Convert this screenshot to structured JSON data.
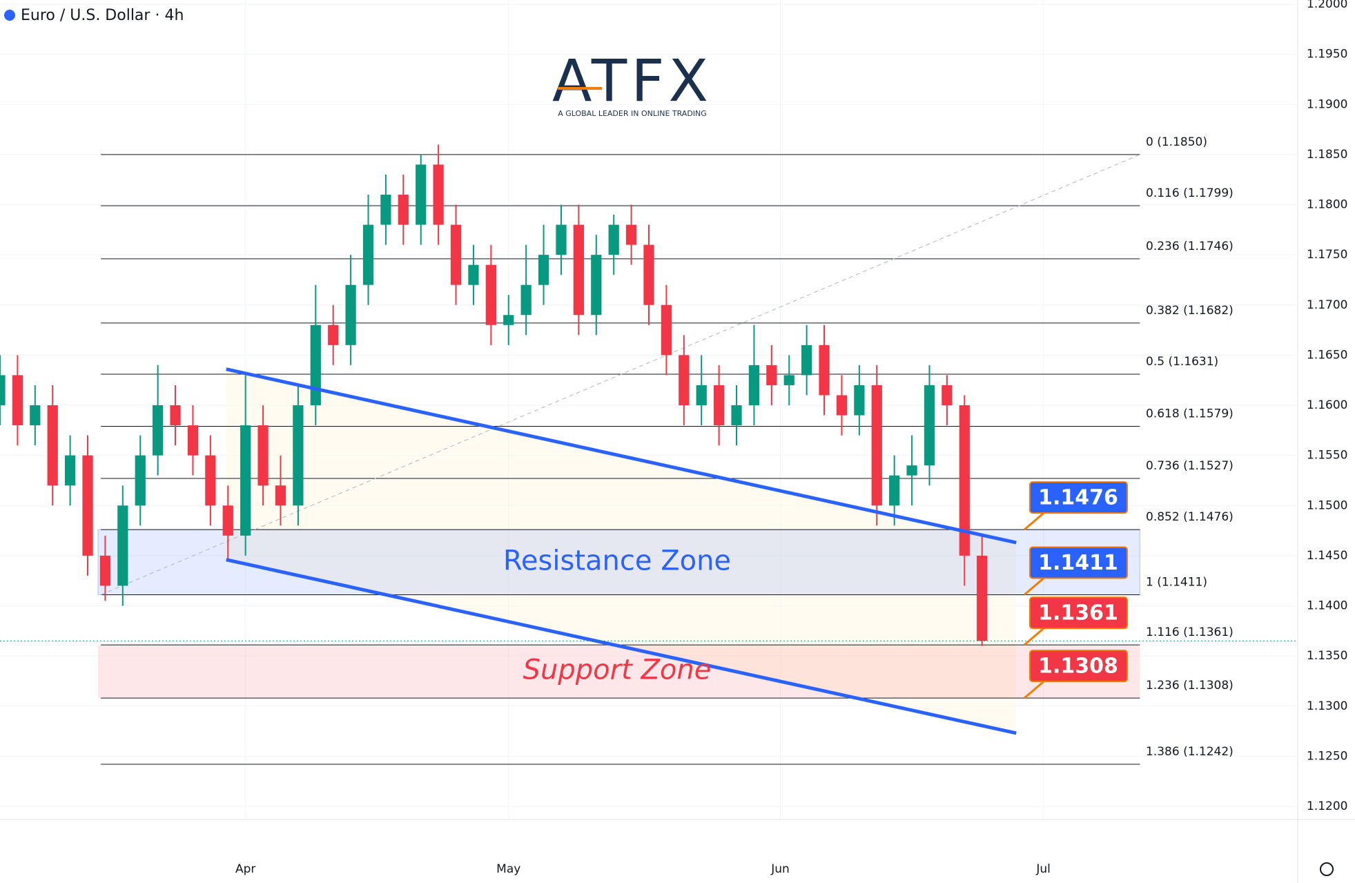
{
  "chart_data": {
    "type": "candlestick",
    "title": "Euro / U.S. Dollar · 4h",
    "logo": "ATFX",
    "tagline": "A GLOBAL LEADER IN ONLINE TRADING",
    "x": [
      3,
      5,
      7,
      9,
      11,
      13,
      15,
      17,
      19,
      21,
      23,
      25,
      27,
      29,
      31,
      33,
      35,
      37,
      39,
      41,
      43,
      45,
      47,
      49,
      51,
      53,
      55,
      57,
      59,
      61,
      63,
      65,
      67,
      69,
      71,
      73,
      75,
      77,
      79,
      81,
      83,
      85,
      87,
      89,
      91,
      93,
      95,
      97,
      99,
      101,
      103,
      105,
      107,
      109,
      111,
      113,
      115
    ],
    "open": [
      1.16,
      1.163,
      1.158,
      1.16,
      1.152,
      1.155,
      1.145,
      1.142,
      1.15,
      1.155,
      1.16,
      1.158,
      1.155,
      1.15,
      1.147,
      1.158,
      1.152,
      1.15,
      1.16,
      1.168,
      1.166,
      1.172,
      1.178,
      1.181,
      1.178,
      1.184,
      1.178,
      1.172,
      1.174,
      1.168,
      1.169,
      1.172,
      1.175,
      1.178,
      1.169,
      1.175,
      1.178,
      1.176,
      1.17,
      1.165,
      1.16,
      1.162,
      1.158,
      1.16,
      1.164,
      1.162,
      1.163,
      1.166,
      1.161,
      1.159,
      1.162,
      1.15,
      1.153,
      1.154,
      1.162,
      1.16,
      1.145
    ],
    "high": [
      1.165,
      1.165,
      1.162,
      1.162,
      1.157,
      1.157,
      1.147,
      1.152,
      1.157,
      1.164,
      1.162,
      1.16,
      1.157,
      1.152,
      1.163,
      1.16,
      1.155,
      1.162,
      1.172,
      1.17,
      1.175,
      1.181,
      1.183,
      1.183,
      1.185,
      1.186,
      1.18,
      1.176,
      1.176,
      1.171,
      1.176,
      1.178,
      1.18,
      1.18,
      1.177,
      1.179,
      1.18,
      1.178,
      1.172,
      1.167,
      1.165,
      1.164,
      1.162,
      1.168,
      1.166,
      1.165,
      1.168,
      1.168,
      1.163,
      1.164,
      1.164,
      1.155,
      1.157,
      1.164,
      1.163,
      1.161,
      1.147
    ],
    "low": [
      1.158,
      1.156,
      1.156,
      1.15,
      1.15,
      1.143,
      1.1405,
      1.14,
      1.148,
      1.153,
      1.156,
      1.153,
      1.148,
      1.1445,
      1.145,
      1.15,
      1.148,
      1.148,
      1.158,
      1.164,
      1.164,
      1.17,
      1.176,
      1.176,
      1.176,
      1.176,
      1.17,
      1.17,
      1.166,
      1.166,
      1.167,
      1.17,
      1.173,
      1.167,
      1.167,
      1.173,
      1.174,
      1.168,
      1.163,
      1.158,
      1.158,
      1.156,
      1.156,
      1.158,
      1.16,
      1.16,
      1.161,
      1.159,
      1.157,
      1.157,
      1.148,
      1.148,
      1.15,
      1.152,
      1.158,
      1.142,
      1.136
    ],
    "close": [
      1.163,
      1.158,
      1.16,
      1.152,
      1.155,
      1.145,
      1.142,
      1.15,
      1.155,
      1.16,
      1.158,
      1.155,
      1.15,
      1.147,
      1.158,
      1.152,
      1.15,
      1.16,
      1.168,
      1.166,
      1.172,
      1.178,
      1.181,
      1.178,
      1.184,
      1.178,
      1.172,
      1.174,
      1.168,
      1.169,
      1.172,
      1.175,
      1.178,
      1.169,
      1.175,
      1.178,
      1.176,
      1.17,
      1.165,
      1.16,
      1.162,
      1.158,
      1.16,
      1.164,
      1.162,
      1.163,
      1.166,
      1.161,
      1.159,
      1.162,
      1.15,
      1.153,
      1.154,
      1.162,
      1.16,
      1.145,
      1.1365
    ],
    "up_color": "#089981",
    "down_color": "#f23645",
    "xlim": [
      3,
      151
    ],
    "xticks": [
      {
        "value": 31,
        "label": "Apr"
      },
      {
        "value": 61,
        "label": "May"
      },
      {
        "value": 92,
        "label": "Jun"
      },
      {
        "value": 122,
        "label": "Jul"
      }
    ],
    "ylim": [
      1.1186,
      1.2
    ],
    "yticks": [
      {
        "value": 1.2,
        "label": "1.2000"
      },
      {
        "value": 1.195,
        "label": "1.1950"
      },
      {
        "value": 1.19,
        "label": "1.1900"
      },
      {
        "value": 1.185,
        "label": "1.1850"
      },
      {
        "value": 1.18,
        "label": "1.1800"
      },
      {
        "value": 1.175,
        "label": "1.1750"
      },
      {
        "value": 1.17,
        "label": "1.1700"
      },
      {
        "value": 1.165,
        "label": "1.1650"
      },
      {
        "value": 1.16,
        "label": "1.1600"
      },
      {
        "value": 1.155,
        "label": "1.1550"
      },
      {
        "value": 1.15,
        "label": "1.1500"
      },
      {
        "value": 1.145,
        "label": "1.1450"
      },
      {
        "value": 1.14,
        "label": "1.1400"
      },
      {
        "value": 1.135,
        "label": "1.1350"
      },
      {
        "value": 1.13,
        "label": "1.1300"
      },
      {
        "value": 1.125,
        "label": "1.1250"
      },
      {
        "value": 1.12,
        "label": "1.1200"
      }
    ],
    "grid": true,
    "fib_trend": {
      "x": [
        14.5,
        133
      ],
      "y": [
        1.1411,
        1.185
      ]
    },
    "fib_levels": [
      {
        "value": 1.185,
        "label": "0 (1.1850)"
      },
      {
        "value": 1.1799,
        "label": "0.116 (1.1799)"
      },
      {
        "value": 1.1746,
        "label": "0.236 (1.1746)"
      },
      {
        "value": 1.1682,
        "label": "0.382 (1.1682)"
      },
      {
        "value": 1.1631,
        "label": "0.5 (1.1631)"
      },
      {
        "value": 1.1579,
        "label": "0.618 (1.1579)"
      },
      {
        "value": 1.1527,
        "label": "0.736 (1.1527)"
      },
      {
        "value": 1.1476,
        "label": "0.852 (1.1476)"
      },
      {
        "value": 1.1411,
        "label": "1 (1.1411)"
      },
      {
        "value": 1.1361,
        "label": "1.116 (1.1361)"
      },
      {
        "value": 1.1308,
        "label": "1.236 (1.1308)"
      },
      {
        "value": 1.1242,
        "label": "1.386 (1.1242)"
      }
    ],
    "zones": [
      {
        "name": "Resistance Zone",
        "range": [
          1.1411,
          1.1476
        ],
        "color": "#2962ff"
      },
      {
        "name": "Support Zone",
        "range": [
          1.1308,
          1.1361
        ],
        "color": "#f23645"
      }
    ],
    "channel": [
      {
        "x": [
          28.8,
          118.9
        ],
        "y": [
          1.1636,
          1.1463
        ]
      },
      {
        "x": [
          28.8,
          118.9
        ],
        "y": [
          1.1446,
          1.1273
        ]
      }
    ],
    "channel_color": "#2962ff",
    "callouts": [
      {
        "value": 1.1476,
        "color": "#2962ff"
      },
      {
        "value": 1.1411,
        "color": "#2962ff"
      },
      {
        "value": 1.1361,
        "color": "#f23645"
      },
      {
        "value": 1.1308,
        "color": "#f23645"
      }
    ],
    "last_price": 1.1365
  }
}
